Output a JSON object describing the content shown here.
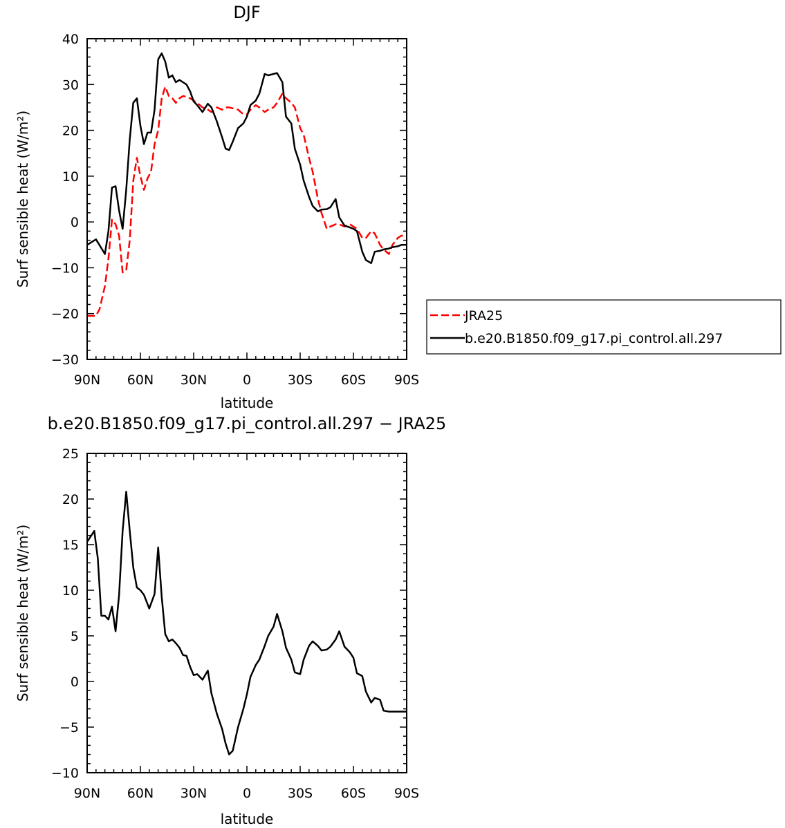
{
  "chart_data": [
    {
      "type": "line",
      "title": "DJF",
      "xlabel": "latitude",
      "ylabel": "Surf sensible heat (W/m²)",
      "xlim": [
        -90,
        90
      ],
      "x_ticks": [
        "90N",
        "60N",
        "30N",
        "0",
        "30S",
        "60S",
        "90S"
      ],
      "ylim": [
        -30,
        40
      ],
      "y_ticks": [
        "−30",
        "−20",
        "−10",
        "0",
        "10",
        "20",
        "30",
        "40"
      ],
      "legend_position": "right",
      "series": [
        {
          "name": "JRA25",
          "color": "#ff0000",
          "style": "dashed",
          "x": [
            -90,
            -85,
            -83,
            -80,
            -78,
            -76,
            -74,
            -72,
            -70,
            -68,
            -66,
            -64,
            -62,
            -60,
            -58,
            -56,
            -54,
            -52,
            -50,
            -48,
            -46,
            -44,
            -42,
            -40,
            -38,
            -36,
            -34,
            -32,
            -30,
            -28,
            -25,
            -22,
            -20,
            -17,
            -14,
            -12,
            -10,
            -8,
            -5,
            -2,
            0,
            2,
            5,
            7,
            10,
            12,
            15,
            17,
            20,
            22,
            25,
            27,
            30,
            32,
            35,
            37,
            40,
            42,
            45,
            47,
            50,
            52,
            55,
            58,
            60,
            62,
            65,
            67,
            70,
            72,
            75,
            77,
            80,
            82,
            85,
            87,
            90
          ],
          "y": [
            -20.5,
            -20.5,
            -19,
            -14,
            -8,
            0.5,
            -0.5,
            -3,
            -11,
            -10.5,
            -4,
            9,
            14,
            10,
            7,
            9.5,
            11,
            17,
            20,
            27,
            29.5,
            27.5,
            27,
            26,
            27,
            27.5,
            27.3,
            27,
            26.5,
            26,
            25,
            24.5,
            24,
            25,
            24.5,
            25,
            25,
            24.8,
            24.5,
            23.5,
            23.5,
            24.5,
            25.5,
            25,
            24,
            24.5,
            25,
            26,
            28,
            27,
            26,
            25,
            20.5,
            19,
            14,
            11,
            5,
            2,
            -1.5,
            -1,
            -0.5,
            -0.5,
            -1,
            -0.5,
            -1,
            -1.5,
            -3.5,
            -3.5,
            -2,
            -2.5,
            -5,
            -6,
            -7,
            -5,
            -3.5,
            -3,
            -3
          ]
        },
        {
          "name": "b.e20.B1850.f09_g17.pi_control.all.297",
          "color": "#000000",
          "style": "solid",
          "x": [
            -90,
            -85,
            -80,
            -78,
            -76,
            -74,
            -72,
            -70,
            -68,
            -66,
            -64,
            -62,
            -60,
            -58,
            -56,
            -54,
            -52,
            -50,
            -48,
            -46,
            -44,
            -42,
            -40,
            -38,
            -36,
            -34,
            -32,
            -30,
            -28,
            -25,
            -22,
            -20,
            -17,
            -14,
            -12,
            -10,
            -8,
            -5,
            -2,
            0,
            2,
            5,
            7,
            10,
            12,
            15,
            17,
            20,
            22,
            25,
            27,
            30,
            32,
            35,
            37,
            40,
            42,
            45,
            47,
            50,
            52,
            55,
            58,
            60,
            62,
            65,
            67,
            70,
            72,
            75,
            77,
            80,
            82,
            85,
            87,
            90
          ],
          "y": [
            -5,
            -3.8,
            -7,
            -2,
            7.5,
            7.8,
            2.5,
            -1.5,
            7,
            18,
            26,
            27,
            21,
            17,
            19.5,
            19.5,
            24.5,
            35.5,
            36.8,
            35,
            31.5,
            32,
            30.5,
            31,
            30.5,
            30,
            28.5,
            26.3,
            25.5,
            24,
            25.8,
            25,
            22,
            18.5,
            16,
            15.7,
            17.5,
            20.5,
            21.5,
            23,
            25.5,
            26.5,
            28,
            32.3,
            32,
            32.3,
            32.5,
            30.5,
            23,
            21.5,
            16,
            12.5,
            9,
            5.5,
            3.5,
            2.3,
            2.7,
            2.8,
            3.2,
            5,
            1,
            -0.8,
            -1.2,
            -1.5,
            -2,
            -6.5,
            -8.3,
            -9,
            -6.5,
            -6.3,
            -6,
            -5.8,
            -5.5,
            -5.3,
            -5,
            -5
          ]
        }
      ]
    },
    {
      "type": "line",
      "title": "b.e20.B1850.f09_g17.pi_control.all.297 − JRA25",
      "xlabel": "latitude",
      "ylabel": "Surf sensible heat (W/m²)",
      "xlim": [
        -90,
        90
      ],
      "x_ticks": [
        "90N",
        "60N",
        "30N",
        "0",
        "30S",
        "60S",
        "90S"
      ],
      "ylim": [
        -10,
        25
      ],
      "y_ticks": [
        "−10",
        "−5",
        "0",
        "5",
        "10",
        "15",
        "20",
        "25"
      ],
      "series": [
        {
          "color": "#000000",
          "style": "solid",
          "x": [
            -90,
            -86,
            -84,
            -82,
            -80,
            -78,
            -76,
            -74,
            -72,
            -70,
            -68,
            -66,
            -64,
            -62,
            -60,
            -58,
            -55,
            -52,
            -50,
            -48,
            -46,
            -44,
            -42,
            -40,
            -38,
            -36,
            -34,
            -32,
            -30,
            -28,
            -25,
            -22,
            -20,
            -17,
            -14,
            -12,
            -10,
            -8,
            -5,
            -2,
            0,
            2,
            5,
            7,
            10,
            12,
            15,
            17,
            20,
            22,
            25,
            27,
            30,
            32,
            35,
            37,
            40,
            42,
            45,
            47,
            50,
            52,
            55,
            58,
            60,
            62,
            65,
            67,
            70,
            72,
            75,
            77,
            80,
            82,
            85,
            87,
            90
          ],
          "y": [
            15.3,
            16.5,
            13.5,
            7.2,
            7.2,
            6.8,
            8.2,
            5.5,
            9.5,
            16.5,
            20.8,
            16.5,
            12.5,
            10.3,
            10.0,
            9.5,
            8.0,
            9.6,
            14.7,
            9.3,
            5.2,
            4.4,
            4.6,
            4.2,
            3.7,
            2.9,
            2.8,
            1.6,
            0.7,
            0.8,
            0.2,
            1.2,
            -1.3,
            -3.5,
            -5.2,
            -6.8,
            -8.0,
            -7.6,
            -5.0,
            -3.0,
            -1.4,
            0.5,
            1.8,
            2.4,
            3.9,
            5.0,
            6.0,
            7.4,
            5.5,
            3.7,
            2.4,
            1.0,
            0.8,
            2.4,
            3.9,
            4.4,
            3.9,
            3.4,
            3.5,
            3.8,
            4.6,
            5.5,
            3.8,
            3.2,
            2.6,
            0.9,
            0.6,
            -1.1,
            -2.3,
            -1.8,
            -2.0,
            -3.2,
            -3.3,
            -3.3,
            -3.3,
            -3.3,
            -3.3
          ]
        }
      ]
    }
  ]
}
